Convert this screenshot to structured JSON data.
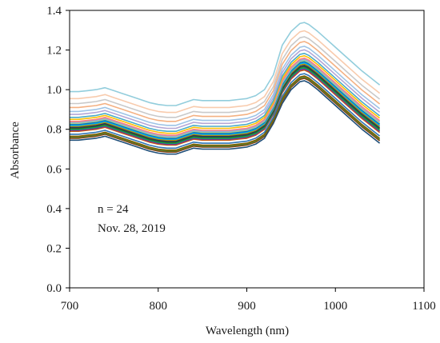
{
  "chart_data": {
    "type": "line",
    "xlabel": "Wavelength (nm)",
    "ylabel": "Absorbance",
    "xlim": [
      700,
      1100
    ],
    "ylim": [
      0.0,
      1.4
    ],
    "xticks": [
      700,
      800,
      900,
      1000,
      1100
    ],
    "yticks": [
      0.0,
      0.2,
      0.4,
      0.6,
      0.8,
      1.0,
      1.2,
      1.4
    ],
    "x_tick_labels": [
      "700",
      "800",
      "900",
      "1000",
      "1100"
    ],
    "y_tick_labels": [
      "0.0",
      "0.2",
      "0.4",
      "0.6",
      "0.8",
      "1.0",
      "1.2",
      "1.4"
    ],
    "grid": false,
    "legend": "none",
    "annotations": [
      "n = 24",
      "Nov. 28, 2019"
    ],
    "x": [
      700,
      710,
      720,
      730,
      740,
      750,
      760,
      770,
      780,
      790,
      800,
      810,
      820,
      830,
      840,
      850,
      860,
      870,
      880,
      890,
      900,
      910,
      920,
      930,
      940,
      950,
      960,
      965,
      970,
      980,
      990,
      1000,
      1010,
      1020,
      1030,
      1040,
      1050
    ],
    "series": [
      {
        "color": "#1f4e79",
        "values": [
          0.745,
          0.745,
          0.75,
          0.755,
          0.765,
          0.75,
          0.735,
          0.72,
          0.705,
          0.69,
          0.68,
          0.675,
          0.675,
          0.69,
          0.705,
          0.7,
          0.7,
          0.7,
          0.7,
          0.705,
          0.71,
          0.725,
          0.755,
          0.83,
          0.93,
          1.0,
          1.04,
          1.045,
          1.035,
          1.0,
          0.96,
          0.92,
          0.88,
          0.84,
          0.8,
          0.765,
          0.73
        ]
      },
      {
        "color": "#843c0c",
        "values": [
          0.755,
          0.755,
          0.76,
          0.765,
          0.775,
          0.76,
          0.745,
          0.73,
          0.715,
          0.7,
          0.69,
          0.685,
          0.685,
          0.7,
          0.715,
          0.71,
          0.71,
          0.71,
          0.71,
          0.715,
          0.72,
          0.735,
          0.765,
          0.84,
          0.942,
          1.012,
          1.052,
          1.057,
          1.047,
          1.012,
          0.972,
          0.932,
          0.892,
          0.852,
          0.812,
          0.777,
          0.742
        ]
      },
      {
        "color": "#548235",
        "values": [
          0.76,
          0.76,
          0.765,
          0.77,
          0.78,
          0.765,
          0.75,
          0.735,
          0.72,
          0.705,
          0.695,
          0.69,
          0.69,
          0.705,
          0.72,
          0.715,
          0.715,
          0.715,
          0.715,
          0.72,
          0.725,
          0.74,
          0.77,
          0.845,
          0.948,
          1.018,
          1.058,
          1.063,
          1.053,
          1.018,
          0.978,
          0.938,
          0.898,
          0.858,
          0.818,
          0.783,
          0.748
        ]
      },
      {
        "color": "#7f6000",
        "values": [
          0.765,
          0.765,
          0.77,
          0.775,
          0.785,
          0.77,
          0.755,
          0.74,
          0.725,
          0.71,
          0.7,
          0.695,
          0.695,
          0.71,
          0.725,
          0.72,
          0.72,
          0.72,
          0.72,
          0.725,
          0.73,
          0.745,
          0.775,
          0.85,
          0.954,
          1.024,
          1.064,
          1.069,
          1.059,
          1.024,
          0.984,
          0.944,
          0.904,
          0.864,
          0.824,
          0.789,
          0.754
        ]
      },
      {
        "color": "#2e75b6",
        "values": [
          0.775,
          0.775,
          0.78,
          0.785,
          0.795,
          0.78,
          0.765,
          0.75,
          0.735,
          0.72,
          0.71,
          0.705,
          0.705,
          0.72,
          0.735,
          0.73,
          0.73,
          0.73,
          0.73,
          0.735,
          0.74,
          0.755,
          0.785,
          0.86,
          0.966,
          1.036,
          1.076,
          1.081,
          1.071,
          1.036,
          0.996,
          0.956,
          0.916,
          0.876,
          0.836,
          0.801,
          0.766
        ]
      },
      {
        "color": "#c55a11",
        "values": [
          0.79,
          0.79,
          0.795,
          0.8,
          0.81,
          0.795,
          0.78,
          0.765,
          0.75,
          0.735,
          0.725,
          0.72,
          0.72,
          0.735,
          0.75,
          0.745,
          0.745,
          0.745,
          0.745,
          0.75,
          0.755,
          0.77,
          0.8,
          0.875,
          0.984,
          1.054,
          1.094,
          1.099,
          1.089,
          1.054,
          1.014,
          0.974,
          0.934,
          0.894,
          0.854,
          0.819,
          0.784
        ]
      },
      {
        "color": "#7030a0",
        "values": [
          0.795,
          0.795,
          0.8,
          0.805,
          0.815,
          0.8,
          0.785,
          0.77,
          0.755,
          0.74,
          0.73,
          0.725,
          0.725,
          0.74,
          0.755,
          0.75,
          0.75,
          0.75,
          0.75,
          0.755,
          0.76,
          0.775,
          0.805,
          0.88,
          0.99,
          1.06,
          1.1,
          1.105,
          1.095,
          1.06,
          1.02,
          0.98,
          0.94,
          0.9,
          0.86,
          0.825,
          0.79
        ]
      },
      {
        "color": "#00b050",
        "values": [
          0.8,
          0.8,
          0.805,
          0.81,
          0.82,
          0.805,
          0.79,
          0.775,
          0.76,
          0.745,
          0.735,
          0.73,
          0.73,
          0.745,
          0.76,
          0.755,
          0.755,
          0.755,
          0.755,
          0.76,
          0.765,
          0.78,
          0.81,
          0.885,
          0.996,
          1.066,
          1.106,
          1.111,
          1.101,
          1.066,
          1.026,
          0.986,
          0.946,
          0.906,
          0.866,
          0.831,
          0.796
        ]
      },
      {
        "color": "#375623",
        "values": [
          0.805,
          0.805,
          0.81,
          0.815,
          0.825,
          0.81,
          0.795,
          0.78,
          0.765,
          0.75,
          0.74,
          0.735,
          0.735,
          0.75,
          0.765,
          0.76,
          0.76,
          0.76,
          0.76,
          0.765,
          0.77,
          0.785,
          0.815,
          0.89,
          1.002,
          1.072,
          1.112,
          1.117,
          1.107,
          1.072,
          1.032,
          0.992,
          0.952,
          0.912,
          0.872,
          0.837,
          0.802
        ]
      },
      {
        "color": "#203864",
        "values": [
          0.81,
          0.81,
          0.815,
          0.82,
          0.83,
          0.815,
          0.8,
          0.785,
          0.77,
          0.755,
          0.745,
          0.74,
          0.74,
          0.755,
          0.77,
          0.765,
          0.765,
          0.765,
          0.765,
          0.77,
          0.775,
          0.79,
          0.82,
          0.895,
          1.008,
          1.078,
          1.118,
          1.123,
          1.113,
          1.078,
          1.038,
          0.998,
          0.958,
          0.918,
          0.878,
          0.843,
          0.808
        ]
      },
      {
        "color": "#bf9000",
        "values": [
          0.815,
          0.815,
          0.82,
          0.825,
          0.835,
          0.82,
          0.805,
          0.79,
          0.775,
          0.76,
          0.75,
          0.745,
          0.745,
          0.76,
          0.775,
          0.77,
          0.77,
          0.77,
          0.77,
          0.775,
          0.78,
          0.795,
          0.825,
          0.9,
          1.014,
          1.084,
          1.124,
          1.129,
          1.119,
          1.084,
          1.044,
          1.004,
          0.964,
          0.924,
          0.884,
          0.849,
          0.814
        ]
      },
      {
        "color": "#00b0f0",
        "values": [
          0.82,
          0.82,
          0.825,
          0.83,
          0.84,
          0.825,
          0.81,
          0.795,
          0.78,
          0.765,
          0.755,
          0.75,
          0.75,
          0.765,
          0.78,
          0.775,
          0.775,
          0.775,
          0.775,
          0.78,
          0.785,
          0.8,
          0.83,
          0.905,
          1.02,
          1.09,
          1.13,
          1.135,
          1.125,
          1.09,
          1.05,
          1.01,
          0.97,
          0.93,
          0.89,
          0.855,
          0.82
        ]
      },
      {
        "color": "#0070c0",
        "values": [
          0.825,
          0.825,
          0.83,
          0.835,
          0.845,
          0.83,
          0.815,
          0.8,
          0.785,
          0.77,
          0.76,
          0.755,
          0.755,
          0.77,
          0.785,
          0.78,
          0.78,
          0.78,
          0.78,
          0.785,
          0.79,
          0.805,
          0.835,
          0.91,
          1.026,
          1.096,
          1.136,
          1.141,
          1.131,
          1.096,
          1.056,
          1.016,
          0.976,
          0.936,
          0.896,
          0.861,
          0.826
        ]
      },
      {
        "color": "#a9d18e",
        "values": [
          0.83,
          0.83,
          0.835,
          0.84,
          0.85,
          0.835,
          0.82,
          0.805,
          0.79,
          0.775,
          0.765,
          0.76,
          0.76,
          0.775,
          0.79,
          0.785,
          0.785,
          0.785,
          0.785,
          0.79,
          0.795,
          0.81,
          0.84,
          0.915,
          1.032,
          1.102,
          1.142,
          1.147,
          1.137,
          1.102,
          1.062,
          1.022,
          0.982,
          0.942,
          0.902,
          0.867,
          0.832
        ]
      },
      {
        "color": "#8faadc",
        "values": [
          0.835,
          0.835,
          0.84,
          0.845,
          0.855,
          0.84,
          0.825,
          0.81,
          0.795,
          0.78,
          0.77,
          0.765,
          0.765,
          0.78,
          0.795,
          0.79,
          0.79,
          0.79,
          0.79,
          0.795,
          0.8,
          0.815,
          0.845,
          0.92,
          1.038,
          1.108,
          1.148,
          1.153,
          1.143,
          1.108,
          1.068,
          1.028,
          0.988,
          0.948,
          0.908,
          0.873,
          0.838
        ]
      },
      {
        "color": "#ff7f7f",
        "values": [
          0.84,
          0.84,
          0.845,
          0.85,
          0.86,
          0.845,
          0.83,
          0.815,
          0.8,
          0.785,
          0.775,
          0.77,
          0.77,
          0.785,
          0.8,
          0.795,
          0.795,
          0.795,
          0.795,
          0.8,
          0.805,
          0.82,
          0.85,
          0.925,
          1.044,
          1.114,
          1.154,
          1.159,
          1.149,
          1.114,
          1.074,
          1.034,
          0.994,
          0.954,
          0.914,
          0.879,
          0.844
        ]
      },
      {
        "color": "#ffc000",
        "values": [
          0.85,
          0.85,
          0.855,
          0.86,
          0.87,
          0.855,
          0.84,
          0.825,
          0.81,
          0.795,
          0.785,
          0.78,
          0.78,
          0.795,
          0.81,
          0.805,
          0.805,
          0.805,
          0.805,
          0.81,
          0.815,
          0.83,
          0.86,
          0.935,
          1.056,
          1.126,
          1.166,
          1.171,
          1.161,
          1.126,
          1.086,
          1.046,
          1.006,
          0.966,
          0.926,
          0.891,
          0.856
        ]
      },
      {
        "color": "#4bacc6",
        "values": [
          0.86,
          0.86,
          0.865,
          0.87,
          0.88,
          0.865,
          0.85,
          0.835,
          0.82,
          0.805,
          0.795,
          0.79,
          0.79,
          0.805,
          0.82,
          0.815,
          0.815,
          0.815,
          0.815,
          0.82,
          0.825,
          0.84,
          0.87,
          0.945,
          1.068,
          1.138,
          1.178,
          1.183,
          1.173,
          1.138,
          1.098,
          1.058,
          1.018,
          0.978,
          0.938,
          0.903,
          0.868
        ]
      },
      {
        "color": "#b4a7d6",
        "values": [
          0.875,
          0.875,
          0.88,
          0.885,
          0.895,
          0.88,
          0.865,
          0.85,
          0.835,
          0.82,
          0.81,
          0.805,
          0.805,
          0.82,
          0.835,
          0.83,
          0.83,
          0.83,
          0.83,
          0.835,
          0.84,
          0.855,
          0.885,
          0.96,
          1.086,
          1.156,
          1.196,
          1.201,
          1.191,
          1.156,
          1.116,
          1.076,
          1.036,
          0.996,
          0.956,
          0.921,
          0.886
        ]
      },
      {
        "color": "#9dc3e6",
        "values": [
          0.89,
          0.89,
          0.895,
          0.9,
          0.91,
          0.895,
          0.88,
          0.865,
          0.85,
          0.835,
          0.825,
          0.82,
          0.82,
          0.835,
          0.85,
          0.845,
          0.845,
          0.845,
          0.845,
          0.85,
          0.855,
          0.87,
          0.9,
          0.975,
          1.104,
          1.174,
          1.214,
          1.219,
          1.209,
          1.174,
          1.134,
          1.094,
          1.054,
          1.014,
          0.974,
          0.939,
          0.904
        ]
      },
      {
        "color": "#f4b183",
        "values": [
          0.91,
          0.91,
          0.915,
          0.92,
          0.93,
          0.915,
          0.9,
          0.885,
          0.87,
          0.855,
          0.845,
          0.84,
          0.84,
          0.855,
          0.87,
          0.865,
          0.865,
          0.865,
          0.865,
          0.87,
          0.875,
          0.89,
          0.92,
          0.995,
          1.128,
          1.198,
          1.238,
          1.243,
          1.233,
          1.198,
          1.158,
          1.118,
          1.078,
          1.038,
          0.998,
          0.963,
          0.928
        ]
      },
      {
        "color": "#c9c9c9",
        "values": [
          0.93,
          0.93,
          0.935,
          0.94,
          0.95,
          0.935,
          0.92,
          0.905,
          0.89,
          0.875,
          0.865,
          0.86,
          0.86,
          0.875,
          0.89,
          0.885,
          0.885,
          0.885,
          0.885,
          0.89,
          0.895,
          0.91,
          0.94,
          1.015,
          1.152,
          1.222,
          1.262,
          1.267,
          1.257,
          1.222,
          1.182,
          1.142,
          1.102,
          1.062,
          1.022,
          0.987,
          0.952
        ]
      },
      {
        "color": "#f8cbad",
        "values": [
          0.955,
          0.955,
          0.96,
          0.965,
          0.975,
          0.96,
          0.945,
          0.93,
          0.915,
          0.9,
          0.89,
          0.885,
          0.885,
          0.9,
          0.915,
          0.91,
          0.91,
          0.91,
          0.91,
          0.915,
          0.92,
          0.935,
          0.965,
          1.04,
          1.182,
          1.252,
          1.292,
          1.297,
          1.287,
          1.252,
          1.212,
          1.172,
          1.132,
          1.092,
          1.052,
          1.017,
          0.982
        ]
      },
      {
        "color": "#92cddc",
        "values": [
          0.99,
          0.99,
          0.995,
          1.0,
          1.01,
          0.995,
          0.98,
          0.965,
          0.95,
          0.935,
          0.925,
          0.92,
          0.92,
          0.935,
          0.95,
          0.945,
          0.945,
          0.945,
          0.945,
          0.95,
          0.955,
          0.97,
          1.0,
          1.075,
          1.224,
          1.294,
          1.334,
          1.339,
          1.329,
          1.294,
          1.254,
          1.214,
          1.174,
          1.134,
          1.094,
          1.059,
          1.024
        ]
      }
    ]
  }
}
